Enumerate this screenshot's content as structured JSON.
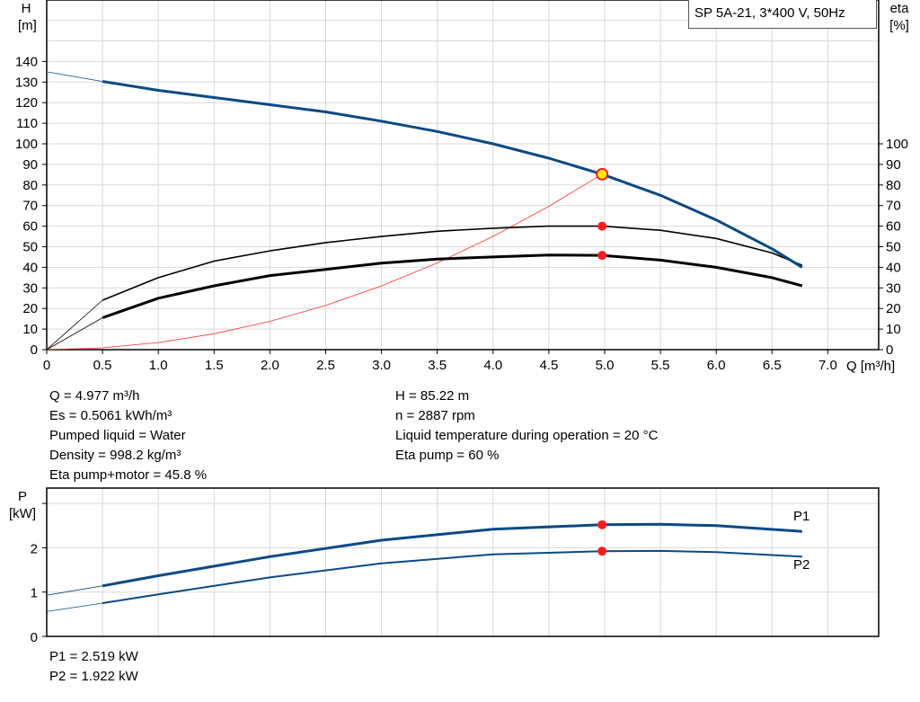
{
  "title_box": "SP 5A-21, 3*400 V, 50Hz",
  "operating_point": {
    "left": [
      "Q = 4.977 m³/h",
      "Es = 0.5061 kWh/m³",
      "Pumped liquid = Water",
      "Density = 998.2 kg/m³",
      "Eta pump+motor = 45.8 %"
    ],
    "right": [
      "H = 85.22 m",
      "n = 2887 rpm",
      "Liquid temperature during operation = 20 °C",
      "Eta pump = 60 %"
    ]
  },
  "power_readout": [
    "P1 = 2.519 kW",
    "P2 = 1.922 kW"
  ],
  "colors": {
    "head": "#0a4a85",
    "eta": "#000000",
    "system": "#ff3030",
    "point": "#ff1a1a",
    "point_highlight": "#ffee00",
    "grid": "#d8d8d8"
  },
  "chart_data": [
    {
      "type": "line",
      "xlabel": "Q [m³/h]",
      "ylabel": "H\n[m]",
      "y2label": "eta\n[%]",
      "xlim": [
        0,
        7.5
      ],
      "ylim": [
        0,
        170
      ],
      "y2lim": [
        0,
        170
      ],
      "grid": true,
      "x_ticks": [
        "0",
        "0.5",
        "1.0",
        "1.5",
        "2.0",
        "2.5",
        "3.0",
        "3.5",
        "4.0",
        "4.5",
        "5.0",
        "5.5",
        "6.0",
        "6.5",
        "7.0"
      ],
      "y_ticks": [
        "0",
        "10",
        "20",
        "30",
        "40",
        "50",
        "60",
        "70",
        "80",
        "90",
        "100",
        "110",
        "120",
        "130",
        "140"
      ],
      "y2_ticks": [
        "0",
        "10",
        "20",
        "30",
        "40",
        "50",
        "60",
        "70",
        "80",
        "90",
        "100"
      ],
      "series": [
        {
          "key": "H",
          "axis": "left",
          "x": [
            0,
            0.5,
            1,
            1.5,
            2,
            2.5,
            3,
            3.5,
            4,
            4.5,
            4.977,
            5.5,
            6,
            6.5,
            6.77
          ],
          "y": [
            135,
            130.3,
            126,
            122.5,
            119,
            115.5,
            111,
            106,
            100,
            93,
            85.22,
            75,
            63,
            49,
            40
          ]
        },
        {
          "key": "eta_pump",
          "axis": "right",
          "x": [
            0,
            0.5,
            1,
            1.5,
            2,
            2.5,
            3,
            3.5,
            4,
            4.5,
            4.977,
            5.5,
            6,
            6.5,
            6.77
          ],
          "y": [
            0,
            24,
            35,
            43,
            48,
            52,
            55,
            57.5,
            59,
            60,
            60,
            58,
            54,
            47,
            41
          ]
        },
        {
          "key": "eta_total",
          "axis": "right",
          "x": [
            0,
            0.5,
            1,
            1.5,
            2,
            2.5,
            3,
            3.5,
            4,
            4.5,
            4.977,
            5.5,
            6,
            6.5,
            6.77
          ],
          "y": [
            0,
            15.5,
            25,
            31,
            36,
            39,
            42,
            44,
            45,
            46,
            45.8,
            43.5,
            40,
            35,
            31
          ]
        },
        {
          "key": "system",
          "axis": "left",
          "x": [
            0,
            0.5,
            1,
            1.5,
            2,
            2.5,
            3,
            3.5,
            4,
            4.5,
            4.977
          ],
          "y": [
            0,
            0.86,
            3.44,
            7.74,
            13.76,
            21.5,
            30.96,
            42.14,
            55.04,
            69.66,
            85.22
          ]
        }
      ],
      "duty_points": [
        {
          "x": 4.977,
          "H": 85.22
        },
        {
          "x": 4.977,
          "eta": 60
        },
        {
          "x": 4.977,
          "eta": 45.8
        }
      ]
    },
    {
      "type": "line",
      "ylabel": "P\n[kW]",
      "xlim": [
        0,
        7.5
      ],
      "ylim": [
        0,
        3.3
      ],
      "grid": true,
      "y_ticks": [
        "0",
        "1",
        "2"
      ],
      "series": [
        {
          "name": "P1",
          "x": [
            0,
            0.5,
            1,
            2,
            3,
            4,
            4.977,
            5.5,
            6,
            6.77
          ],
          "y": [
            0.93,
            1.14,
            1.37,
            1.8,
            2.17,
            2.42,
            2.519,
            2.53,
            2.5,
            2.37
          ]
        },
        {
          "name": "P2",
          "x": [
            0,
            0.5,
            1,
            2,
            3,
            4,
            4.977,
            5.5,
            6,
            6.77
          ],
          "y": [
            0.56,
            0.75,
            0.95,
            1.33,
            1.65,
            1.85,
            1.922,
            1.93,
            1.9,
            1.8
          ]
        }
      ],
      "duty_points": [
        {
          "x": 4.977,
          "y": 2.519
        },
        {
          "x": 4.977,
          "y": 1.922
        }
      ]
    }
  ]
}
